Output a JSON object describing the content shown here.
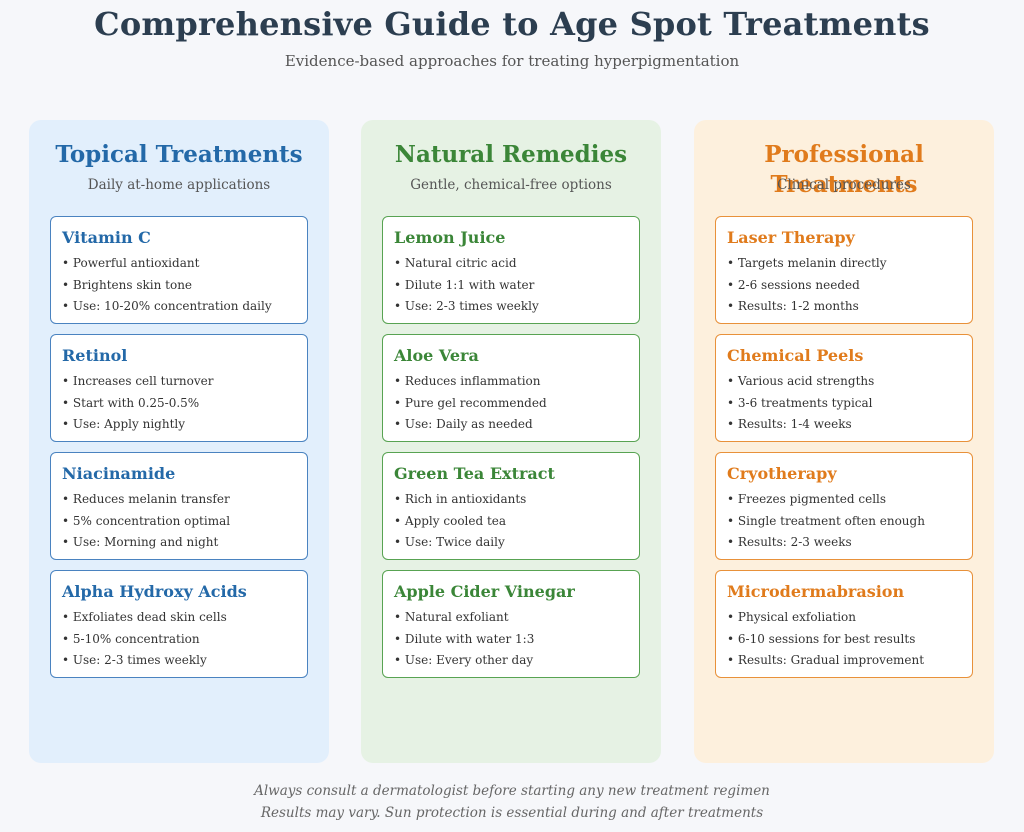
{
  "header": {
    "title": "Comprehensive Guide to Age Spot Treatments",
    "subtitle": "Evidence-based approaches for treating hyperpigmentation"
  },
  "columns": [
    {
      "title": "Topical Treatments",
      "subtitle": "Daily at-home applications",
      "accent_color": "#2469a8",
      "cards": [
        {
          "title": "Vitamin C",
          "items": [
            "Powerful antioxidant",
            "Brightens skin tone",
            "Use: 10-20% concentration daily"
          ]
        },
        {
          "title": "Retinol",
          "items": [
            "Increases cell turnover",
            "Start with 0.25-0.5%",
            "Use: Apply nightly"
          ]
        },
        {
          "title": "Niacinamide",
          "items": [
            "Reduces melanin transfer",
            "5% concentration optimal",
            "Use: Morning and night"
          ]
        },
        {
          "title": "Alpha Hydroxy Acids",
          "items": [
            "Exfoliates dead skin cells",
            "5-10% concentration",
            "Use: 2-3 times weekly"
          ]
        }
      ]
    },
    {
      "title": "Natural Remedies",
      "subtitle": "Gentle, chemical-free options",
      "accent_color": "#3b8638",
      "cards": [
        {
          "title": "Lemon Juice",
          "items": [
            "Natural citric acid",
            "Dilute 1:1 with water",
            "Use: 2-3 times weekly"
          ]
        },
        {
          "title": "Aloe Vera",
          "items": [
            "Reduces inflammation",
            "Pure gel recommended",
            "Use: Daily as needed"
          ]
        },
        {
          "title": "Green Tea Extract",
          "items": [
            "Rich in antioxidants",
            "Apply cooled tea",
            "Use: Twice daily"
          ]
        },
        {
          "title": "Apple Cider Vinegar",
          "items": [
            "Natural exfoliant",
            "Dilute with water 1:3",
            "Use: Every other day"
          ]
        }
      ]
    },
    {
      "title": "Professional Treatments",
      "subtitle": "Clinical procedures",
      "accent_color": "#e07b1c",
      "cards": [
        {
          "title": "Laser Therapy",
          "items": [
            "Targets melanin directly",
            "2-6 sessions needed",
            "Results: 1-2 months"
          ]
        },
        {
          "title": "Chemical Peels",
          "items": [
            "Various acid strengths",
            "3-6 treatments typical",
            "Results: 1-4 weeks"
          ]
        },
        {
          "title": "Cryotherapy",
          "items": [
            "Freezes pigmented cells",
            "Single treatment often enough",
            "Results: 2-3 weeks"
          ]
        },
        {
          "title": "Microdermabrasion",
          "items": [
            "Physical exfoliation",
            "6-10 sessions for best results",
            "Results: Gradual improvement"
          ]
        }
      ]
    }
  ],
  "footer": {
    "line1": "Always consult a dermatologist before starting any new treatment regimen",
    "line2": "Results may vary. Sun protection is essential during and after treatments"
  }
}
